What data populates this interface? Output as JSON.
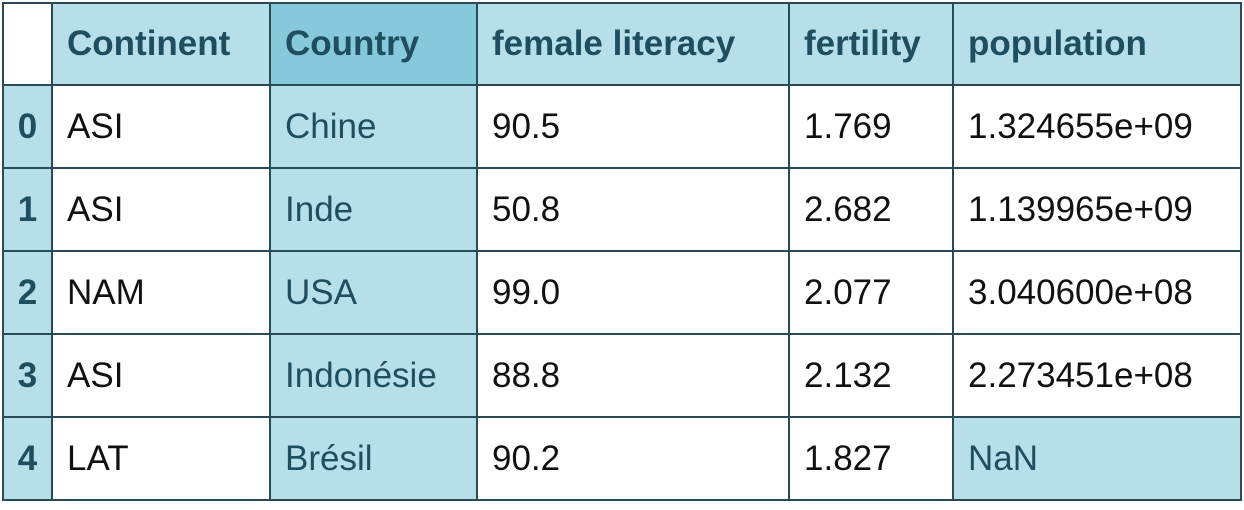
{
  "table": {
    "columns": {
      "index": "",
      "continent": "Continent",
      "country": "Country",
      "female_literacy": "female literacy",
      "fertility": "fertility",
      "population": "population"
    },
    "highlight_color": "#b7dfea",
    "header_highlight_color": "#86c9db",
    "rows": [
      {
        "index": "0",
        "continent": "ASI",
        "country": "Chine",
        "female_literacy": "90.5",
        "fertility": "1.769",
        "population": "1.324655e+09"
      },
      {
        "index": "1",
        "continent": "ASI",
        "country": "Inde",
        "female_literacy": "50.8",
        "fertility": "2.682",
        "population": "1.139965e+09"
      },
      {
        "index": "2",
        "continent": "NAM",
        "country": "USA",
        "female_literacy": "99.0",
        "fertility": "2.077",
        "population": "3.040600e+08"
      },
      {
        "index": "3",
        "continent": "ASI",
        "country": "Indonésie",
        "female_literacy": "88.8",
        "fertility": "2.132",
        "population": "2.273451e+08"
      },
      {
        "index": "4",
        "continent": "LAT",
        "country": "Brésil",
        "female_literacy": "90.2",
        "fertility": "1.827",
        "population": "NaN"
      }
    ]
  }
}
